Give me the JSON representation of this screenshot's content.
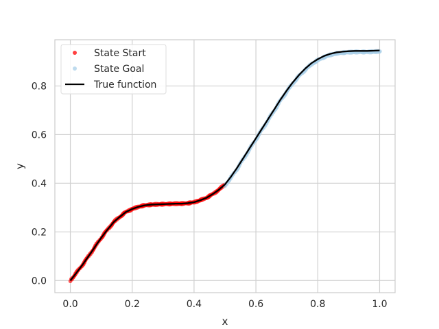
{
  "chart_data": {
    "type": "scatter",
    "title": "",
    "xlabel": "x",
    "ylabel": "y",
    "xlim": [
      -0.05,
      1.05
    ],
    "ylim": [
      -0.05,
      0.99
    ],
    "x_ticks": [
      "0.0",
      "0.2",
      "0.4",
      "0.6",
      "0.8",
      "1.0"
    ],
    "y_ticks": [
      "0.0",
      "0.2",
      "0.4",
      "0.6",
      "0.8"
    ],
    "grid": true,
    "legend_position": "top-left",
    "series": [
      {
        "name": "State Start",
        "kind": "scatter",
        "color": "#ff0000",
        "x_range": [
          0.0,
          0.5
        ],
        "points": [
          [
            0.0,
            0.0
          ],
          [
            0.02,
            0.032
          ],
          [
            0.04,
            0.066
          ],
          [
            0.06,
            0.102
          ],
          [
            0.08,
            0.139
          ],
          [
            0.1,
            0.176
          ],
          [
            0.12,
            0.209
          ],
          [
            0.14,
            0.24
          ],
          [
            0.16,
            0.262
          ],
          [
            0.18,
            0.282
          ],
          [
            0.2,
            0.294
          ],
          [
            0.22,
            0.303
          ],
          [
            0.24,
            0.309
          ],
          [
            0.26,
            0.312
          ],
          [
            0.28,
            0.313
          ],
          [
            0.3,
            0.314
          ],
          [
            0.32,
            0.315
          ],
          [
            0.34,
            0.316
          ],
          [
            0.36,
            0.316
          ],
          [
            0.38,
            0.318
          ],
          [
            0.4,
            0.322
          ],
          [
            0.42,
            0.33
          ],
          [
            0.44,
            0.34
          ],
          [
            0.46,
            0.355
          ],
          [
            0.48,
            0.373
          ],
          [
            0.5,
            0.395
          ]
        ]
      },
      {
        "name": "State Goal",
        "kind": "scatter",
        "color": "#a8cfe8",
        "x_range": [
          0.5,
          1.0
        ],
        "points": [
          [
            0.5,
            0.395
          ],
          [
            0.52,
            0.428
          ],
          [
            0.54,
            0.465
          ],
          [
            0.56,
            0.505
          ],
          [
            0.58,
            0.545
          ],
          [
            0.6,
            0.585
          ],
          [
            0.62,
            0.625
          ],
          [
            0.64,
            0.665
          ],
          [
            0.66,
            0.705
          ],
          [
            0.68,
            0.745
          ],
          [
            0.7,
            0.782
          ],
          [
            0.72,
            0.816
          ],
          [
            0.74,
            0.846
          ],
          [
            0.76,
            0.872
          ],
          [
            0.78,
            0.894
          ],
          [
            0.8,
            0.91
          ],
          [
            0.82,
            0.923
          ],
          [
            0.84,
            0.932
          ],
          [
            0.86,
            0.938
          ],
          [
            0.88,
            0.941
          ],
          [
            0.9,
            0.943
          ],
          [
            0.92,
            0.944
          ],
          [
            0.94,
            0.944
          ],
          [
            0.96,
            0.944
          ],
          [
            0.98,
            0.945
          ],
          [
            1.0,
            0.946
          ]
        ]
      },
      {
        "name": "True function",
        "kind": "line",
        "color": "#000000",
        "points": [
          [
            0.0,
            0.0
          ],
          [
            0.02,
            0.032
          ],
          [
            0.04,
            0.066
          ],
          [
            0.06,
            0.102
          ],
          [
            0.08,
            0.139
          ],
          [
            0.1,
            0.176
          ],
          [
            0.12,
            0.209
          ],
          [
            0.14,
            0.24
          ],
          [
            0.16,
            0.262
          ],
          [
            0.18,
            0.282
          ],
          [
            0.2,
            0.294
          ],
          [
            0.22,
            0.303
          ],
          [
            0.24,
            0.309
          ],
          [
            0.26,
            0.312
          ],
          [
            0.28,
            0.313
          ],
          [
            0.3,
            0.314
          ],
          [
            0.32,
            0.315
          ],
          [
            0.34,
            0.316
          ],
          [
            0.36,
            0.316
          ],
          [
            0.38,
            0.318
          ],
          [
            0.4,
            0.322
          ],
          [
            0.42,
            0.33
          ],
          [
            0.44,
            0.34
          ],
          [
            0.46,
            0.355
          ],
          [
            0.48,
            0.373
          ],
          [
            0.5,
            0.395
          ],
          [
            0.52,
            0.428
          ],
          [
            0.54,
            0.465
          ],
          [
            0.56,
            0.505
          ],
          [
            0.58,
            0.545
          ],
          [
            0.6,
            0.585
          ],
          [
            0.62,
            0.625
          ],
          [
            0.64,
            0.665
          ],
          [
            0.66,
            0.705
          ],
          [
            0.68,
            0.745
          ],
          [
            0.7,
            0.782
          ],
          [
            0.72,
            0.816
          ],
          [
            0.74,
            0.846
          ],
          [
            0.76,
            0.872
          ],
          [
            0.78,
            0.894
          ],
          [
            0.8,
            0.91
          ],
          [
            0.82,
            0.923
          ],
          [
            0.84,
            0.932
          ],
          [
            0.86,
            0.938
          ],
          [
            0.88,
            0.941
          ],
          [
            0.9,
            0.943
          ],
          [
            0.92,
            0.944
          ],
          [
            0.94,
            0.944
          ],
          [
            0.96,
            0.944
          ],
          [
            0.98,
            0.945
          ],
          [
            1.0,
            0.946
          ]
        ]
      }
    ]
  }
}
